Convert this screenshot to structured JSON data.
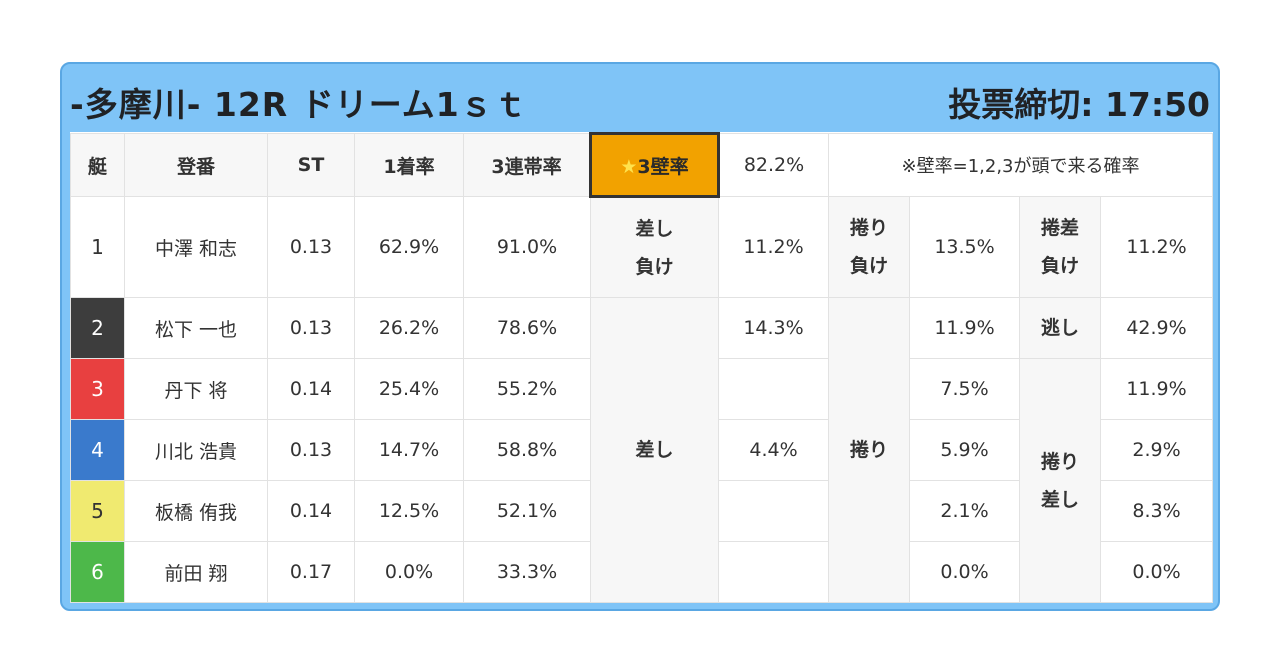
{
  "header": {
    "title": "-多摩川- 12R ドリーム1ｓｔ",
    "deadline": "投票締切: 17:50"
  },
  "table": {
    "columns": {
      "boat": "艇",
      "name": "登番",
      "st": "ST",
      "first_rate": "1着率",
      "top3_rate": "3連帯率",
      "wall_star": "★",
      "wall_label": "3壁率",
      "wall_value": "82.2%",
      "note": "※壁率=1,2,3が頭で来る確率"
    },
    "rows": [
      {
        "boat": "1",
        "name": "中澤 和志",
        "st": "0.13",
        "first_rate": "62.9%",
        "top3_rate": "91.0%"
      },
      {
        "boat": "2",
        "name": "松下 一也",
        "st": "0.13",
        "first_rate": "26.2%",
        "top3_rate": "78.6%"
      },
      {
        "boat": "3",
        "name": "丹下 将",
        "st": "0.14",
        "first_rate": "25.4%",
        "top3_rate": "55.2%"
      },
      {
        "boat": "4",
        "name": "川北 浩貴",
        "st": "0.13",
        "first_rate": "14.7%",
        "top3_rate": "58.8%"
      },
      {
        "boat": "5",
        "name": "板橋 侑我",
        "st": "0.14",
        "first_rate": "12.5%",
        "top3_rate": "52.1%"
      },
      {
        "boat": "6",
        "name": "前田 翔",
        "st": "0.17",
        "first_rate": "0.0%",
        "top3_rate": "33.3%"
      }
    ],
    "row1_stats": {
      "sashi_make_l1": "差し",
      "sashi_make_l2": "負け",
      "sashi_make_val": "11.2%",
      "makuri_make_l1": "捲り",
      "makuri_make_l2": "負け",
      "makuri_make_val": "13.5%",
      "makurizashi_make_l1": "捲差",
      "makurizashi_make_l2": "負け",
      "makurizashi_make_val": "11.2%"
    },
    "sashi": {
      "label": "差し",
      "v2": "14.3%",
      "v4": "4.4%"
    },
    "makuri": {
      "label": "捲り",
      "v2": "11.9%",
      "v3": "7.5%",
      "v4": "5.9%",
      "v5": "2.1%",
      "v6": "0.0%"
    },
    "nige": {
      "label": "逃し",
      "v2": "42.9%"
    },
    "makurizashi": {
      "label_l1": "捲り",
      "label_l2": "差し",
      "v3": "11.9%",
      "v4": "2.9%",
      "v5": "8.3%",
      "v6": "0.0%"
    }
  }
}
